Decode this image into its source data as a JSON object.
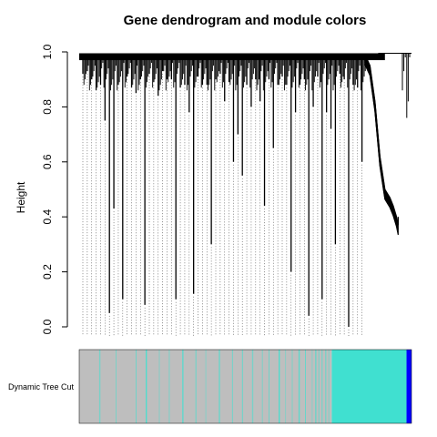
{
  "chart_data": {
    "type": "dendrogram",
    "title": "Gene dendrogram and module colors",
    "ylabel": "Height",
    "xlabel": "",
    "ylim": [
      0,
      1
    ],
    "y_ticks": [
      0.0,
      0.2,
      0.4,
      0.6,
      0.8,
      1.0
    ],
    "y_tick_labels": [
      "0.0",
      "0.2",
      "0.4",
      "0.6",
      "0.8",
      "1.0"
    ],
    "merge_height_top": 0.99,
    "leaf_min_heights": [
      0.92,
      0.93,
      0.9,
      0.86,
      0.88,
      0.75,
      0.05,
      0.43,
      0.88,
      0.1,
      0.91,
      0.87,
      0.85,
      0.9,
      0.08,
      0.92,
      0.89,
      0.84,
      0.93,
      0.9,
      0.9,
      0.1,
      0.87,
      0.88,
      0.78,
      0.12,
      0.91,
      0.88,
      0.88,
      0.3,
      0.9,
      0.92,
      0.82,
      0.89,
      0.6,
      0.7,
      0.55,
      0.88,
      0.8,
      0.9,
      0.82,
      0.44,
      0.9,
      0.65,
      0.88,
      0.91,
      0.88,
      0.2,
      0.78,
      0.88,
      0.9,
      0.04,
      0.8,
      0.91,
      0.1,
      0.78,
      0.72,
      0.3,
      0.92,
      0.9,
      0.0,
      0.88,
      0.87,
      0.6
    ],
    "cluster_curve": {
      "top": 0.99,
      "points": [
        [
          0.0,
          0.99
        ],
        [
          0.15,
          0.95
        ],
        [
          0.3,
          0.82
        ],
        [
          0.45,
          0.62
        ],
        [
          0.6,
          0.5
        ],
        [
          0.75,
          0.47
        ],
        [
          0.85,
          0.44
        ],
        [
          0.95,
          0.4
        ],
        [
          1.0,
          0.37
        ]
      ]
    },
    "right_cluster_heights": [
      0.86,
      0.93,
      0.98,
      0.76,
      0.82,
      0.98
    ],
    "module_track": {
      "label": "Dynamic Tree Cut",
      "colors": {
        "grey": "#bebebe",
        "turquoise": "#40e0d0",
        "blue": "#0000ff"
      },
      "segments": [
        {
          "color": "grey",
          "from": 0.0,
          "to": 0.76
        },
        {
          "color": "turquoise",
          "from": 0.76,
          "to": 0.985
        },
        {
          "color": "blue",
          "from": 0.985,
          "to": 1.0
        }
      ],
      "stripe_positions": [
        0.06,
        0.11,
        0.17,
        0.2,
        0.24,
        0.27,
        0.31,
        0.35,
        0.38,
        0.42,
        0.46,
        0.49,
        0.52,
        0.55,
        0.57,
        0.6,
        0.62,
        0.64,
        0.66,
        0.68,
        0.7,
        0.71,
        0.72,
        0.73,
        0.74,
        0.75
      ]
    }
  }
}
